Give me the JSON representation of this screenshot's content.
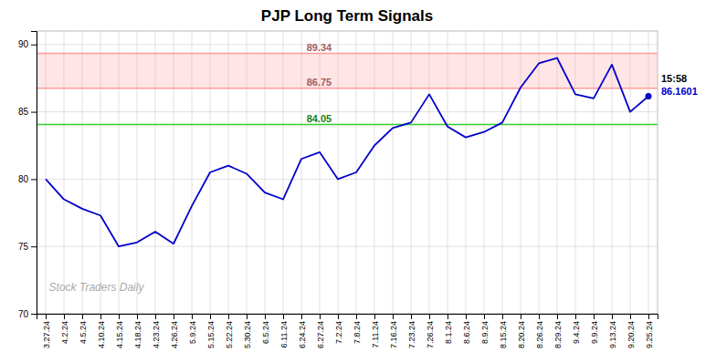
{
  "chart_data": {
    "type": "line",
    "title": "PJP Long Term Signals",
    "categories": [
      "3.27.24",
      "4.2.24",
      "4.5.24",
      "4.10.24",
      "4.15.24",
      "4.18.24",
      "4.23.24",
      "4.26.24",
      "5.9.24",
      "5.15.24",
      "5.22.24",
      "5.30.24",
      "6.5.24",
      "6.11.24",
      "6.24.24",
      "6.27.24",
      "7.2.24",
      "7.8.24",
      "7.11.24",
      "7.16.24",
      "7.23.24",
      "7.26.24",
      "8.1.24",
      "8.6.24",
      "8.9.24",
      "8.15.24",
      "8.20.24",
      "8.26.24",
      "8.29.24",
      "9.4.24",
      "9.9.24",
      "9.13.24",
      "9.20.24",
      "9.25.24"
    ],
    "values": [
      80.0,
      78.5,
      77.8,
      77.3,
      75.0,
      75.3,
      76.1,
      75.2,
      78.0,
      80.5,
      81.0,
      80.4,
      79.0,
      78.5,
      81.5,
      82.0,
      80.0,
      80.5,
      82.5,
      83.8,
      84.2,
      86.3,
      83.9,
      83.1,
      83.5,
      84.2,
      86.8,
      88.6,
      89.0,
      86.3,
      86.0,
      88.5,
      85.0,
      86.1601
    ],
    "color": "#0000CC",
    "marker": "last",
    "ylim": [
      70,
      91
    ],
    "yticks": [
      70,
      75,
      80,
      85,
      90
    ],
    "grid": true,
    "reference_lines": [
      {
        "value": 89.34,
        "color": "#ff9999"
      },
      {
        "value": 86.75,
        "color": "#ff9999"
      },
      {
        "value": 84.05,
        "color": "#33cc33"
      }
    ],
    "annotations": [
      "15:58",
      "86.1601"
    ],
    "watermark": "Stock Traders Daily"
  }
}
